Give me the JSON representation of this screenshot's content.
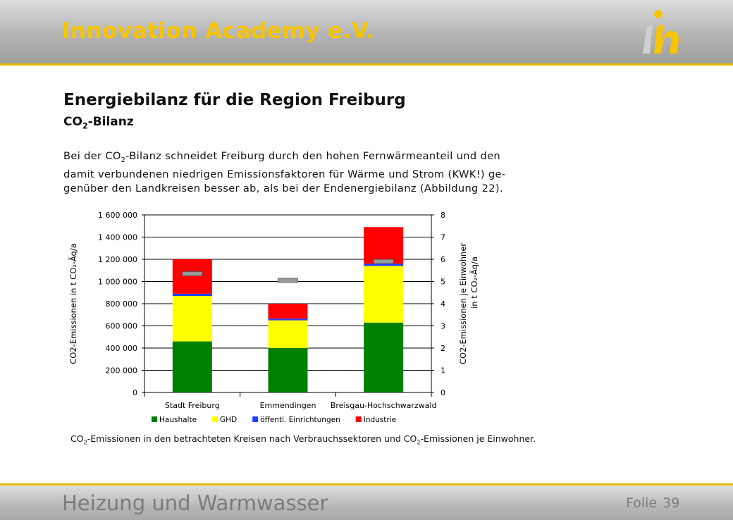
{
  "header": {
    "brand": "Innovation Academy e.V.",
    "logo_icon": "innovation-academy-logo"
  },
  "footer": {
    "title": "Heizung und Warmwasser",
    "slide_label": "Folie",
    "slide_number": "39"
  },
  "slide": {
    "title": "Energiebilanz für die Region Freiburg",
    "subtitle": {
      "pre": "CO",
      "sub": "2",
      "post": "-Bilanz"
    },
    "paragraph": [
      {
        "pre": "Bei der CO",
        "sub": "2",
        "post": "-Bilanz schneidet Freiburg durch den hohen Fernwärmeanteil und den"
      },
      {
        "text": "damit verbundenen niedrigen Emissionsfaktoren für Wärme und Strom (KWK!) ge-"
      },
      {
        "text": "genüber den Landkreisen besser ab, als bei der Endenergiebilanz (Abbildung 22)."
      }
    ],
    "caption": {
      "p1": "CO",
      "s1": "2",
      "p2": "-Emissionen in den betrachteten Kreisen nach Verbrauchssektoren und CO",
      "s2": "2",
      "p3": "-Emissionen je Einwohner."
    }
  },
  "colors": {
    "Haushalte": "#008000",
    "GHD": "#ffff00",
    "öffentl. Einrichtungen": "#1f3fff",
    "Industrie": "#ff0000",
    "per_capita_marker": "#9a9a9a"
  },
  "chart_data": {
    "type": "bar",
    "stacked": true,
    "categories": [
      "Stadt Freiburg",
      "Emmendingen",
      "Breisgau-Hochschwarzwald"
    ],
    "series": [
      {
        "name": "Haushalte",
        "values": [
          460000,
          400000,
          630000
        ]
      },
      {
        "name": "GHD",
        "values": [
          410000,
          250000,
          510000
        ]
      },
      {
        "name": "öffentl. Einrichtungen",
        "values": [
          20000,
          15000,
          20000
        ]
      },
      {
        "name": "Industrie",
        "values": [
          310000,
          135000,
          330000
        ]
      }
    ],
    "per_capita": {
      "axis": "right",
      "values": [
        5.35,
        5.05,
        5.9
      ]
    },
    "y_left": {
      "label": "CO2-Emissionen in t CO₂-Äq/a",
      "ylim": [
        0,
        1600000
      ],
      "ticks": [
        "0",
        "200 000",
        "400 000",
        "600 000",
        "800 000",
        "1 000 000",
        "1 200 000",
        "1 400 000",
        "1 600 000"
      ]
    },
    "y_right": {
      "label_line1": "CO2-Emissionen je Einwohner",
      "label_line2": "in t CO₂-Äq/a",
      "ylim": [
        0,
        8
      ],
      "ticks": [
        "0",
        "1",
        "2",
        "3",
        "4",
        "5",
        "6",
        "7",
        "8"
      ]
    },
    "legend_position": "bottom",
    "grid": true
  }
}
